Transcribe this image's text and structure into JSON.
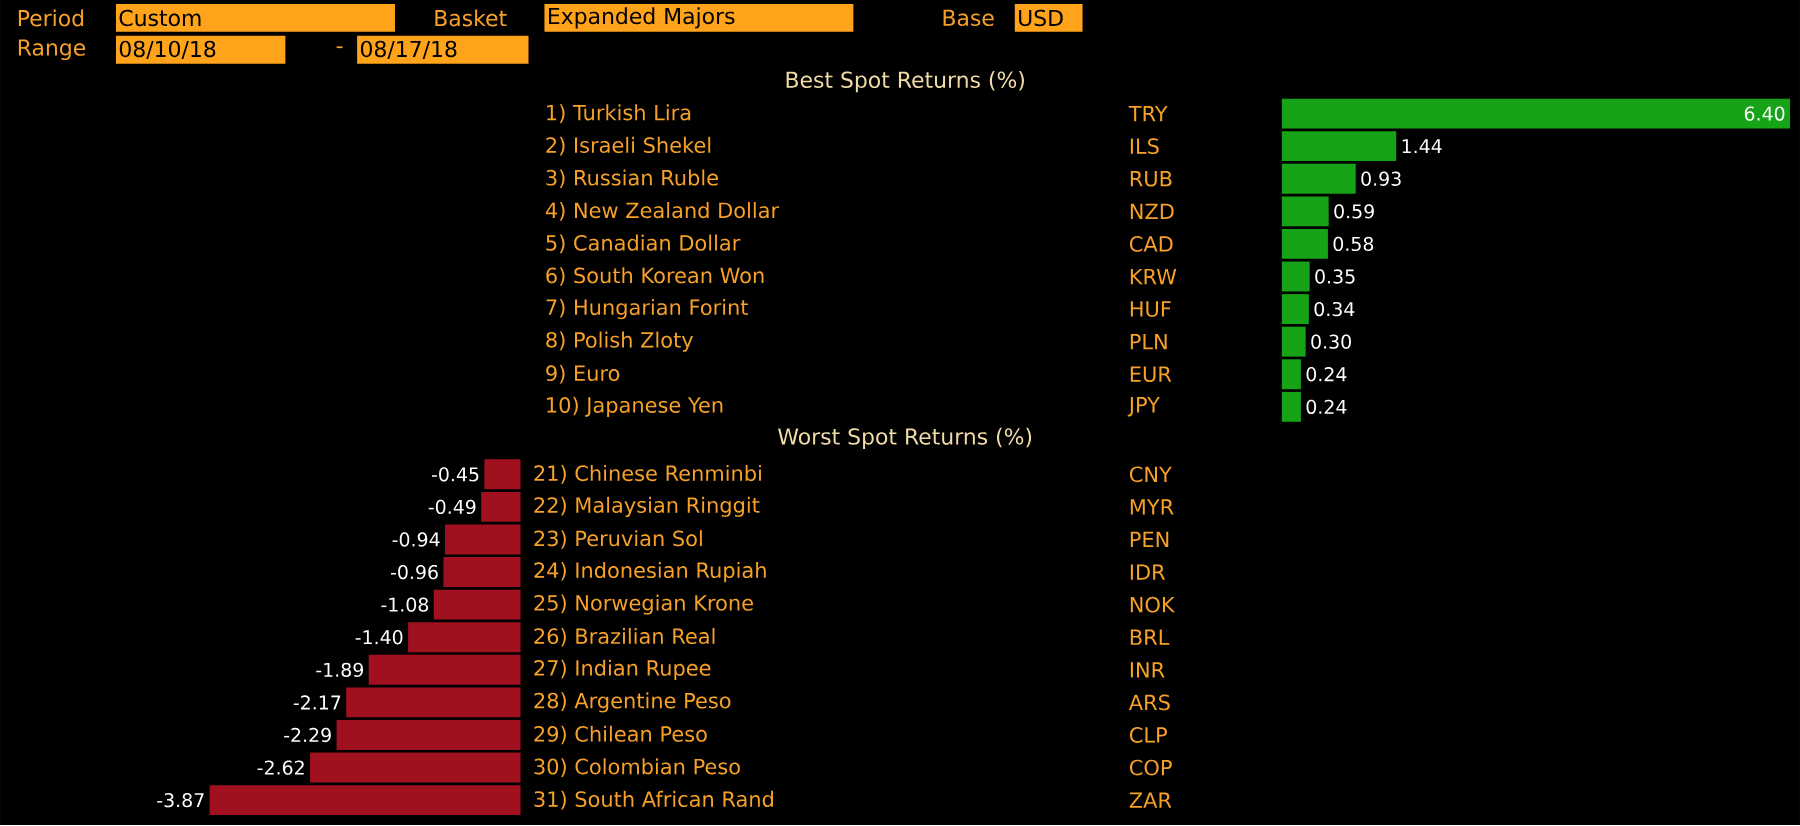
{
  "chart_data": [
    {
      "type": "bar",
      "orientation": "horizontal",
      "title": "Best Spot Returns (%)",
      "color": "#17a317",
      "categories": [
        "1) Turkish Lira",
        "2) Israeli Shekel",
        "3) Russian Ruble",
        "4) New Zealand Dollar",
        "5) Canadian Dollar",
        "6) South Korean Won",
        "7) Hungarian Forint",
        "8) Polish Zloty",
        "9) Euro",
        "10) Japanese Yen"
      ],
      "values": [
        6.4,
        1.44,
        0.93,
        0.59,
        0.58,
        0.35,
        0.34,
        0.3,
        0.24,
        0.24
      ],
      "value_labels": [
        "6.40",
        "1.44",
        "0.93",
        "0.59",
        "0.58",
        "0.35",
        "0.34",
        "0.30",
        "0.24",
        "0.24"
      ],
      "annotations": [
        "Period",
        "Custom",
        "Basket",
        "Expanded Majors",
        "Base",
        "USD",
        "Range",
        "08/10/18",
        "-",
        "08/17/18",
        "TRY",
        "ILS",
        "RUB",
        "NZD",
        "CAD",
        "KRW",
        "HUF",
        "PLN",
        "EUR",
        "JPY"
      ]
    },
    {
      "type": "bar",
      "orientation": "horizontal",
      "title": "Worst Spot Returns (%)",
      "color": "#a0101e",
      "categories": [
        "21) Chinese Renminbi",
        "22) Malaysian Ringgit",
        "23) Peruvian Sol",
        "24) Indonesian Rupiah",
        "25) Norwegian Krone",
        "26) Brazilian Real",
        "27) Indian Rupee",
        "28) Argentine Peso",
        "29) Chilean Peso",
        "30) Colombian Peso",
        "31) South African Rand"
      ],
      "values": [
        -0.45,
        -0.49,
        -0.94,
        -0.96,
        -1.08,
        -1.4,
        -1.89,
        -2.17,
        -2.29,
        -2.62,
        -3.87
      ],
      "value_labels": [
        "-0.45",
        "-0.49",
        "-0.94",
        "-0.96",
        "-1.08",
        "-1.40",
        "-1.89",
        "-2.17",
        "-2.29",
        "-2.62",
        "-3.87"
      ],
      "annotations": [
        "CNY",
        "MYR",
        "PEN",
        "IDR",
        "NOK",
        "BRL",
        "INR",
        "ARS",
        "CLP",
        "COP",
        "ZAR"
      ]
    }
  ]
}
